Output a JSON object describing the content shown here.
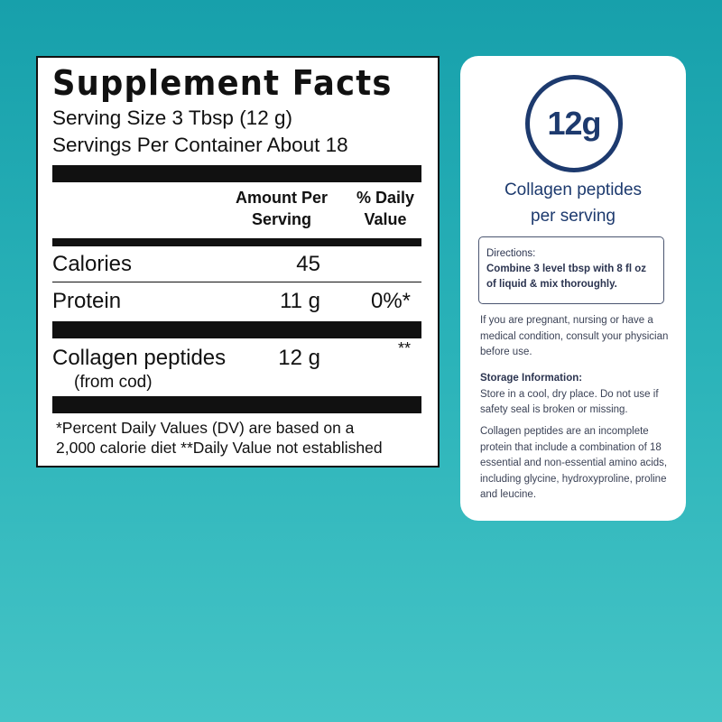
{
  "label": {
    "title": "Supplement Facts",
    "serving_size": "Serving Size 3 Tbsp (12 g)",
    "servings_per_container": "Servings Per Container About 18",
    "header": {
      "amount_line1": "Amount Per",
      "amount_line2": "Serving",
      "dv_line1": "% Daily",
      "dv_line2": "Value"
    },
    "rows": [
      {
        "name": "Calories",
        "amount": "45",
        "dv": ""
      },
      {
        "name": "Protein",
        "amount": "11 g",
        "dv": "0%*"
      },
      {
        "name": "Collagen peptides",
        "sub": "(from cod)",
        "amount": "12 g",
        "dv": "**"
      }
    ],
    "footnote_line1": "*Percent Daily Values (DV) are based on a",
    "footnote_line2": "2,000 calorie diet **Daily Value not established"
  },
  "card": {
    "badge": "12g",
    "subtitle_line1": "Collagen peptides",
    "subtitle_line2": "per serving",
    "directions_title": "Directions:",
    "directions_text": "Combine 3 level tbsp with 8 fl oz of liquid & mix thoroughly.",
    "warning": "If you are pregnant, nursing or have a medical condition, consult your physician before use.",
    "storage_title": "Storage Information:",
    "storage_text": "Store in a cool, dry place. Do not use if safety seal is broken or missing.",
    "info": "Collagen peptides are an incomplete protein that include a combination of 18 essential and non-essential amino acids, including glycine, hydroxyproline, proline and leucine."
  },
  "colors": {
    "navy": "#1d3a6e",
    "background_top": "#17a0ab",
    "background_bottom": "#45c4c6"
  }
}
